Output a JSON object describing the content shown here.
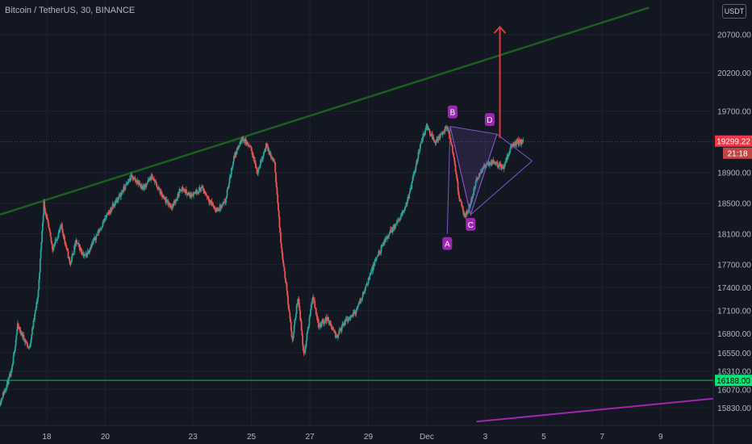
{
  "header": {
    "symbol_title": "Bitcoin / TetherUS, 30, BINANCE",
    "currency": "USDT"
  },
  "colors": {
    "background": "#131722",
    "grid": "#1e222d",
    "up_candle": "#26a69a",
    "down_candle": "#ef5350",
    "trendline_upper": "#1b5e20",
    "support_line": "#00c853",
    "purple_line": "#9c27b0",
    "pattern": "#7e57c2",
    "arrow": "#e53935",
    "price_badge": "#f23645",
    "support_badge": "#00e676",
    "axis_text": "#b2b5be"
  },
  "chart_data": {
    "type": "candlestick",
    "title": "Bitcoin / TetherUS, 30, BINANCE",
    "y_axis": {
      "ticks": [
        20700,
        20200,
        19700,
        18900,
        18500,
        18100,
        17700,
        17400,
        17100,
        16800,
        16550,
        16310,
        16070,
        15830
      ],
      "tick_labels": [
        "20700.00",
        "20200.00",
        "19700.00",
        "18900.00",
        "18500.00",
        "18100.00",
        "17700.00",
        "17400.00",
        "17100.00",
        "16800.00",
        "16550.00",
        "16310.00",
        "16070.00",
        "15830.00"
      ],
      "range": [
        15600,
        21150
      ]
    },
    "x_axis": {
      "tick_labels": [
        "18",
        "20",
        "23",
        "25",
        "27",
        "29",
        "Dec",
        "3",
        "5",
        "7",
        "9"
      ],
      "tick_days": [
        18,
        20,
        23,
        25,
        27,
        29,
        31,
        33,
        35,
        37,
        39
      ],
      "range": [
        16.4,
        40.8
      ],
      "unit": "Nov 2022 day (Dec 1 = 31)"
    },
    "price_path": [
      [
        16.4,
        15900
      ],
      [
        16.8,
        16300
      ],
      [
        17.0,
        16900
      ],
      [
        17.4,
        16600
      ],
      [
        17.7,
        17300
      ],
      [
        17.9,
        18500
      ],
      [
        18.2,
        17900
      ],
      [
        18.5,
        18200
      ],
      [
        18.8,
        17700
      ],
      [
        19.0,
        18000
      ],
      [
        19.3,
        17800
      ],
      [
        19.6,
        18000
      ],
      [
        20.0,
        18300
      ],
      [
        20.5,
        18600
      ],
      [
        20.9,
        18850
      ],
      [
        21.3,
        18700
      ],
      [
        21.6,
        18850
      ],
      [
        22.0,
        18550
      ],
      [
        22.3,
        18450
      ],
      [
        22.6,
        18700
      ],
      [
        22.9,
        18600
      ],
      [
        23.3,
        18700
      ],
      [
        23.8,
        18400
      ],
      [
        24.1,
        18500
      ],
      [
        24.4,
        19100
      ],
      [
        24.7,
        19350
      ],
      [
        25.0,
        19200
      ],
      [
        25.2,
        18900
      ],
      [
        25.5,
        19250
      ],
      [
        25.8,
        19000
      ],
      [
        26.0,
        18000
      ],
      [
        26.2,
        17400
      ],
      [
        26.4,
        16700
      ],
      [
        26.6,
        17300
      ],
      [
        26.8,
        16500
      ],
      [
        27.1,
        17300
      ],
      [
        27.3,
        16900
      ],
      [
        27.6,
        17000
      ],
      [
        27.9,
        16750
      ],
      [
        28.2,
        16950
      ],
      [
        28.6,
        17100
      ],
      [
        28.9,
        17400
      ],
      [
        29.3,
        17800
      ],
      [
        29.7,
        18100
      ],
      [
        30.1,
        18300
      ],
      [
        30.4,
        18600
      ],
      [
        30.8,
        19300
      ],
      [
        31.0,
        19500
      ],
      [
        31.3,
        19300
      ],
      [
        31.5,
        19400
      ],
      [
        31.7,
        19500
      ],
      [
        31.9,
        19150
      ],
      [
        32.1,
        18600
      ],
      [
        32.3,
        18300
      ],
      [
        32.5,
        18500
      ],
      [
        32.7,
        18800
      ],
      [
        33.0,
        19000
      ],
      [
        33.3,
        19050
      ],
      [
        33.6,
        18950
      ],
      [
        33.9,
        19250
      ],
      [
        34.1,
        19300
      ],
      [
        34.3,
        19299.22
      ]
    ],
    "series": [
      {
        "name": "",
        "kind": "trendline",
        "points": [
          [
            16.4,
            18350
          ],
          [
            38.6,
            21050
          ]
        ]
      },
      {
        "name": "",
        "kind": "horizontal",
        "value": 16188.0
      },
      {
        "name": "",
        "kind": "trendline",
        "points": [
          [
            32.7,
            15650
          ],
          [
            40.8,
            15950
          ]
        ]
      }
    ],
    "pattern_points": [
      {
        "label": "A",
        "day": 31.7,
        "price": 18100
      },
      {
        "label": "B",
        "day": 31.8,
        "price": 19500
      },
      {
        "label": "C",
        "day": 32.5,
        "price": 18350
      },
      {
        "label": "D",
        "day": 33.4,
        "price": 19400
      }
    ],
    "target_arrow": {
      "day": 33.5,
      "from_price": 19350,
      "to_price": 20800
    },
    "last_price": {
      "label": "19299.22",
      "value": 19299.22,
      "countdown": "21:18"
    },
    "support_price": {
      "label": "16188.00",
      "value": 16188.0
    },
    "grid": true,
    "legend": "none"
  }
}
